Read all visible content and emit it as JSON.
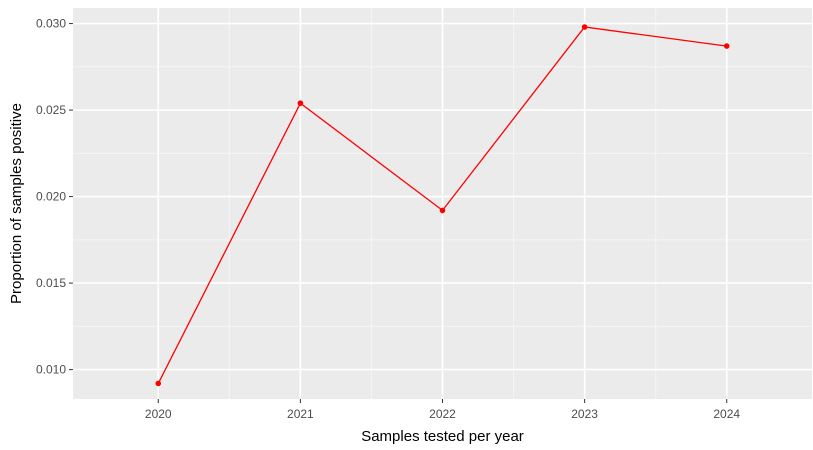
{
  "chart_data": {
    "type": "line",
    "title": "",
    "xlabel": "Samples tested per year",
    "ylabel": "Proportion of samples positive",
    "categories": [
      "2020",
      "2021",
      "2022",
      "2023",
      "2024"
    ],
    "series": [
      {
        "values": [
          0.0092,
          0.0254,
          0.0192,
          0.0298,
          0.0287
        ]
      }
    ],
    "ylim": [
      0.0083,
      0.0309
    ],
    "y_ticks": [
      0.01,
      0.015,
      0.02,
      0.025,
      0.03
    ],
    "y_tick_labels": [
      "0.010",
      "0.015",
      "0.020",
      "0.025",
      "0.030"
    ],
    "grid": true,
    "legend": "none",
    "colors": {
      "line": "#ff0000",
      "panel": "#ebebeb",
      "grid_major": "#ffffff",
      "grid_minor": "#f5f5f5",
      "tick": "#4d4d4d"
    }
  }
}
